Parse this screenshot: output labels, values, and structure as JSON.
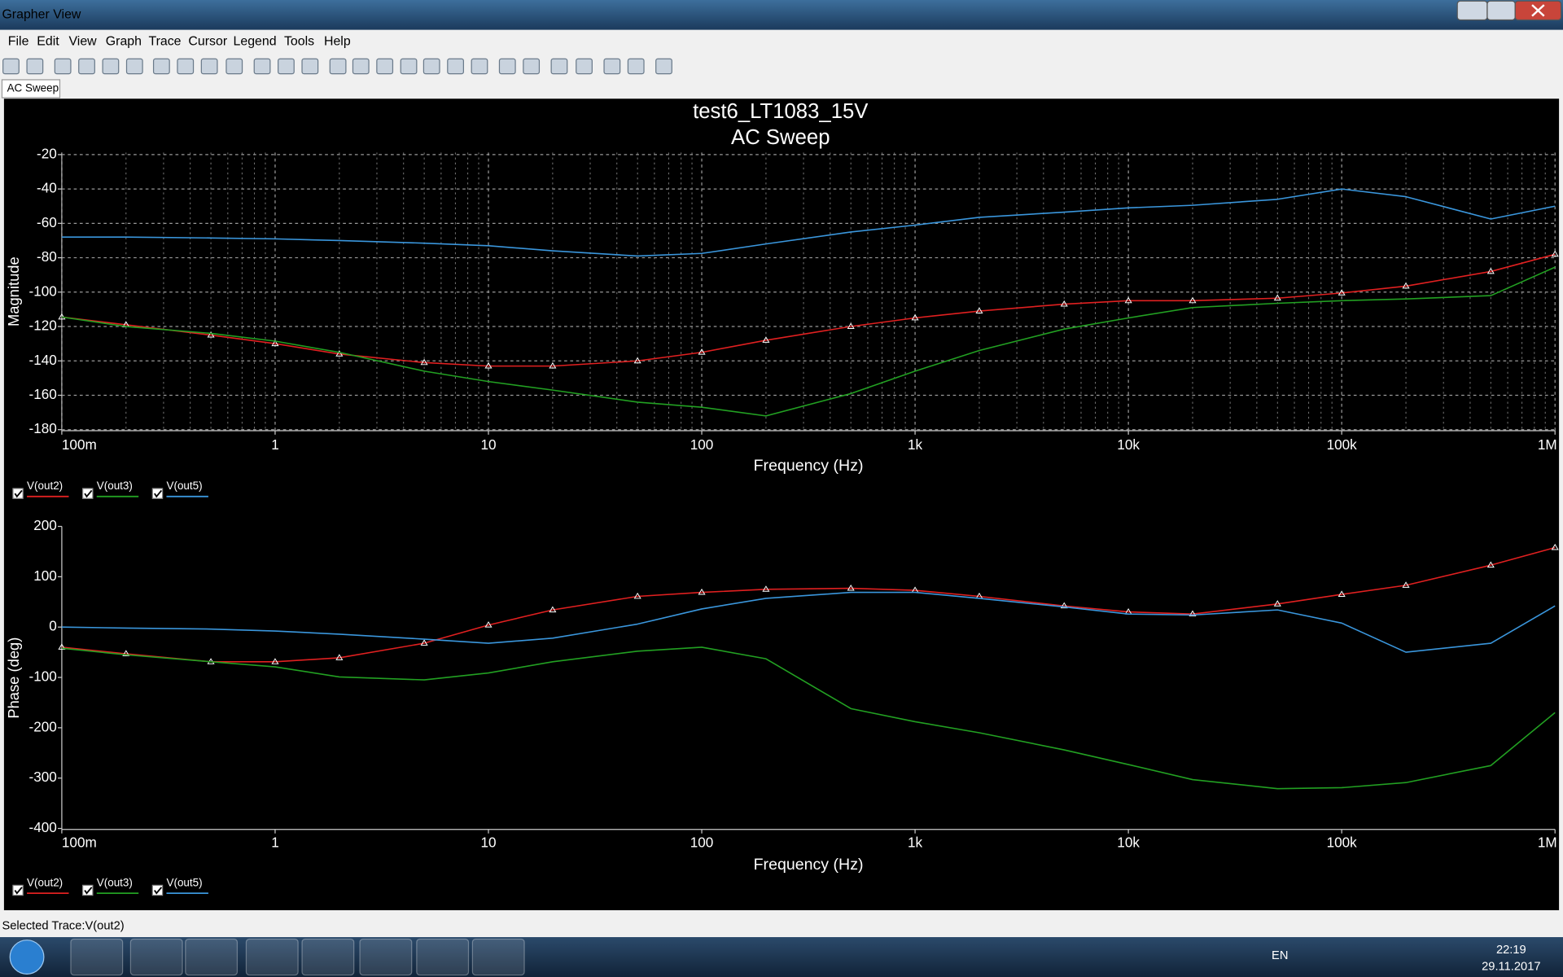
{
  "window": {
    "title": "Grapher View"
  },
  "menu": [
    "File",
    "Edit",
    "View",
    "Graph",
    "Trace",
    "Cursor",
    "Legend",
    "Tools",
    "Help"
  ],
  "tab": "AC Sweep",
  "status": "Selected Trace:V(out2)",
  "taskbar": {
    "lang": "EN",
    "time": "22:19",
    "date": "29.11.2017"
  },
  "chart_data": [
    {
      "type": "line",
      "title": "test6_LT1083_15V",
      "subtitle": "AC Sweep",
      "x_label": "Frequency (Hz)",
      "y_label": "Magnitude",
      "xscale": "log",
      "xlim": [
        0.1,
        1000000
      ],
      "ylim": [
        -180.6,
        -18.8
      ],
      "grid": true,
      "xticks": [
        {
          "value": 0.1,
          "label": "100m"
        },
        1,
        10,
        100,
        {
          "value": 1000,
          "label": "1k"
        },
        {
          "value": 10000,
          "label": "10k"
        },
        {
          "value": 100000,
          "label": "100k"
        },
        {
          "value": 1000000,
          "label": "1M"
        }
      ],
      "yticks": [
        -20,
        -40,
        -60,
        -80,
        -100,
        -120,
        -140,
        -160,
        -180
      ],
      "x": [
        0.1,
        0.2,
        0.5,
        1,
        2,
        5,
        10,
        20,
        50,
        100,
        200,
        500,
        1000,
        2000,
        5000,
        10000,
        20000,
        50000,
        100000,
        200000,
        500000,
        1000000
      ],
      "series": [
        {
          "name": "V(out2)",
          "color": "#e02020",
          "markers": true,
          "values": [
            -114.5,
            -119,
            -125,
            -130,
            -136,
            -141,
            -143,
            -143,
            -140,
            -135,
            -128,
            -120,
            -115,
            -111,
            -107,
            -105,
            -105,
            -103.5,
            -100.5,
            -96.5,
            -88,
            -78
          ]
        },
        {
          "name": "V(out3)",
          "color": "#22a022",
          "markers": false,
          "values": [
            -114.5,
            -120,
            -124,
            -128.5,
            -135,
            -146,
            -152,
            -157,
            -164,
            -167,
            -172,
            -159,
            -146,
            -134,
            -121.5,
            -115,
            -109,
            -106.5,
            -105,
            -104,
            -102,
            -85.5
          ]
        },
        {
          "name": "V(out5)",
          "color": "#3a96dc",
          "markers": false,
          "values": [
            -68,
            -68,
            -68.5,
            -69,
            -70,
            -71.5,
            -73,
            -76,
            -79,
            -77.5,
            -72,
            -65,
            -61,
            -56.5,
            -53.5,
            -51,
            -49.5,
            -46,
            -40,
            -44.5,
            -57.5,
            -50
          ]
        }
      ]
    },
    {
      "type": "line",
      "x_label": "Frequency (Hz)",
      "y_label": "Phase (deg)",
      "xscale": "log",
      "xlim": [
        0.1,
        1000000
      ],
      "ylim": [
        -402,
        200
      ],
      "grid": false,
      "xticks": [
        {
          "value": 0.1,
          "label": "100m"
        },
        1,
        10,
        100,
        {
          "value": 1000,
          "label": "1k"
        },
        {
          "value": 10000,
          "label": "10k"
        },
        {
          "value": 100000,
          "label": "100k"
        },
        {
          "value": 1000000,
          "label": "1M"
        }
      ],
      "yticks": [
        200,
        100,
        0,
        -100,
        -200,
        -300,
        -400
      ],
      "x": [
        0.1,
        0.2,
        0.5,
        1,
        2,
        5,
        10,
        20,
        50,
        100,
        200,
        500,
        1000,
        2000,
        5000,
        10000,
        20000,
        50000,
        100000,
        200000,
        500000,
        1000000
      ],
      "series": [
        {
          "name": "V(out2)",
          "color": "#e02020",
          "markers": true,
          "values": [
            -40,
            -53,
            -69,
            -69,
            -61,
            -32,
            4,
            34,
            61,
            69,
            75,
            77,
            73,
            61,
            42,
            30,
            26,
            46,
            65,
            83,
            123,
            158
          ]
        },
        {
          "name": "V(out3)",
          "color": "#22a022",
          "markers": false,
          "values": [
            -42,
            -55,
            -69,
            -79,
            -99,
            -105,
            -91,
            -69,
            -48,
            -40,
            -63,
            -162,
            -188,
            -210,
            -244,
            -273,
            -303,
            -321,
            -319,
            -309,
            -275,
            -170
          ]
        },
        {
          "name": "V(out5)",
          "color": "#3a96dc",
          "markers": false,
          "values": [
            0,
            -2,
            -4,
            -8,
            -14,
            -24,
            -32,
            -22,
            6,
            36,
            57,
            69,
            69,
            57,
            40,
            26,
            24,
            34,
            8,
            -50,
            -32,
            42
          ]
        }
      ]
    }
  ]
}
